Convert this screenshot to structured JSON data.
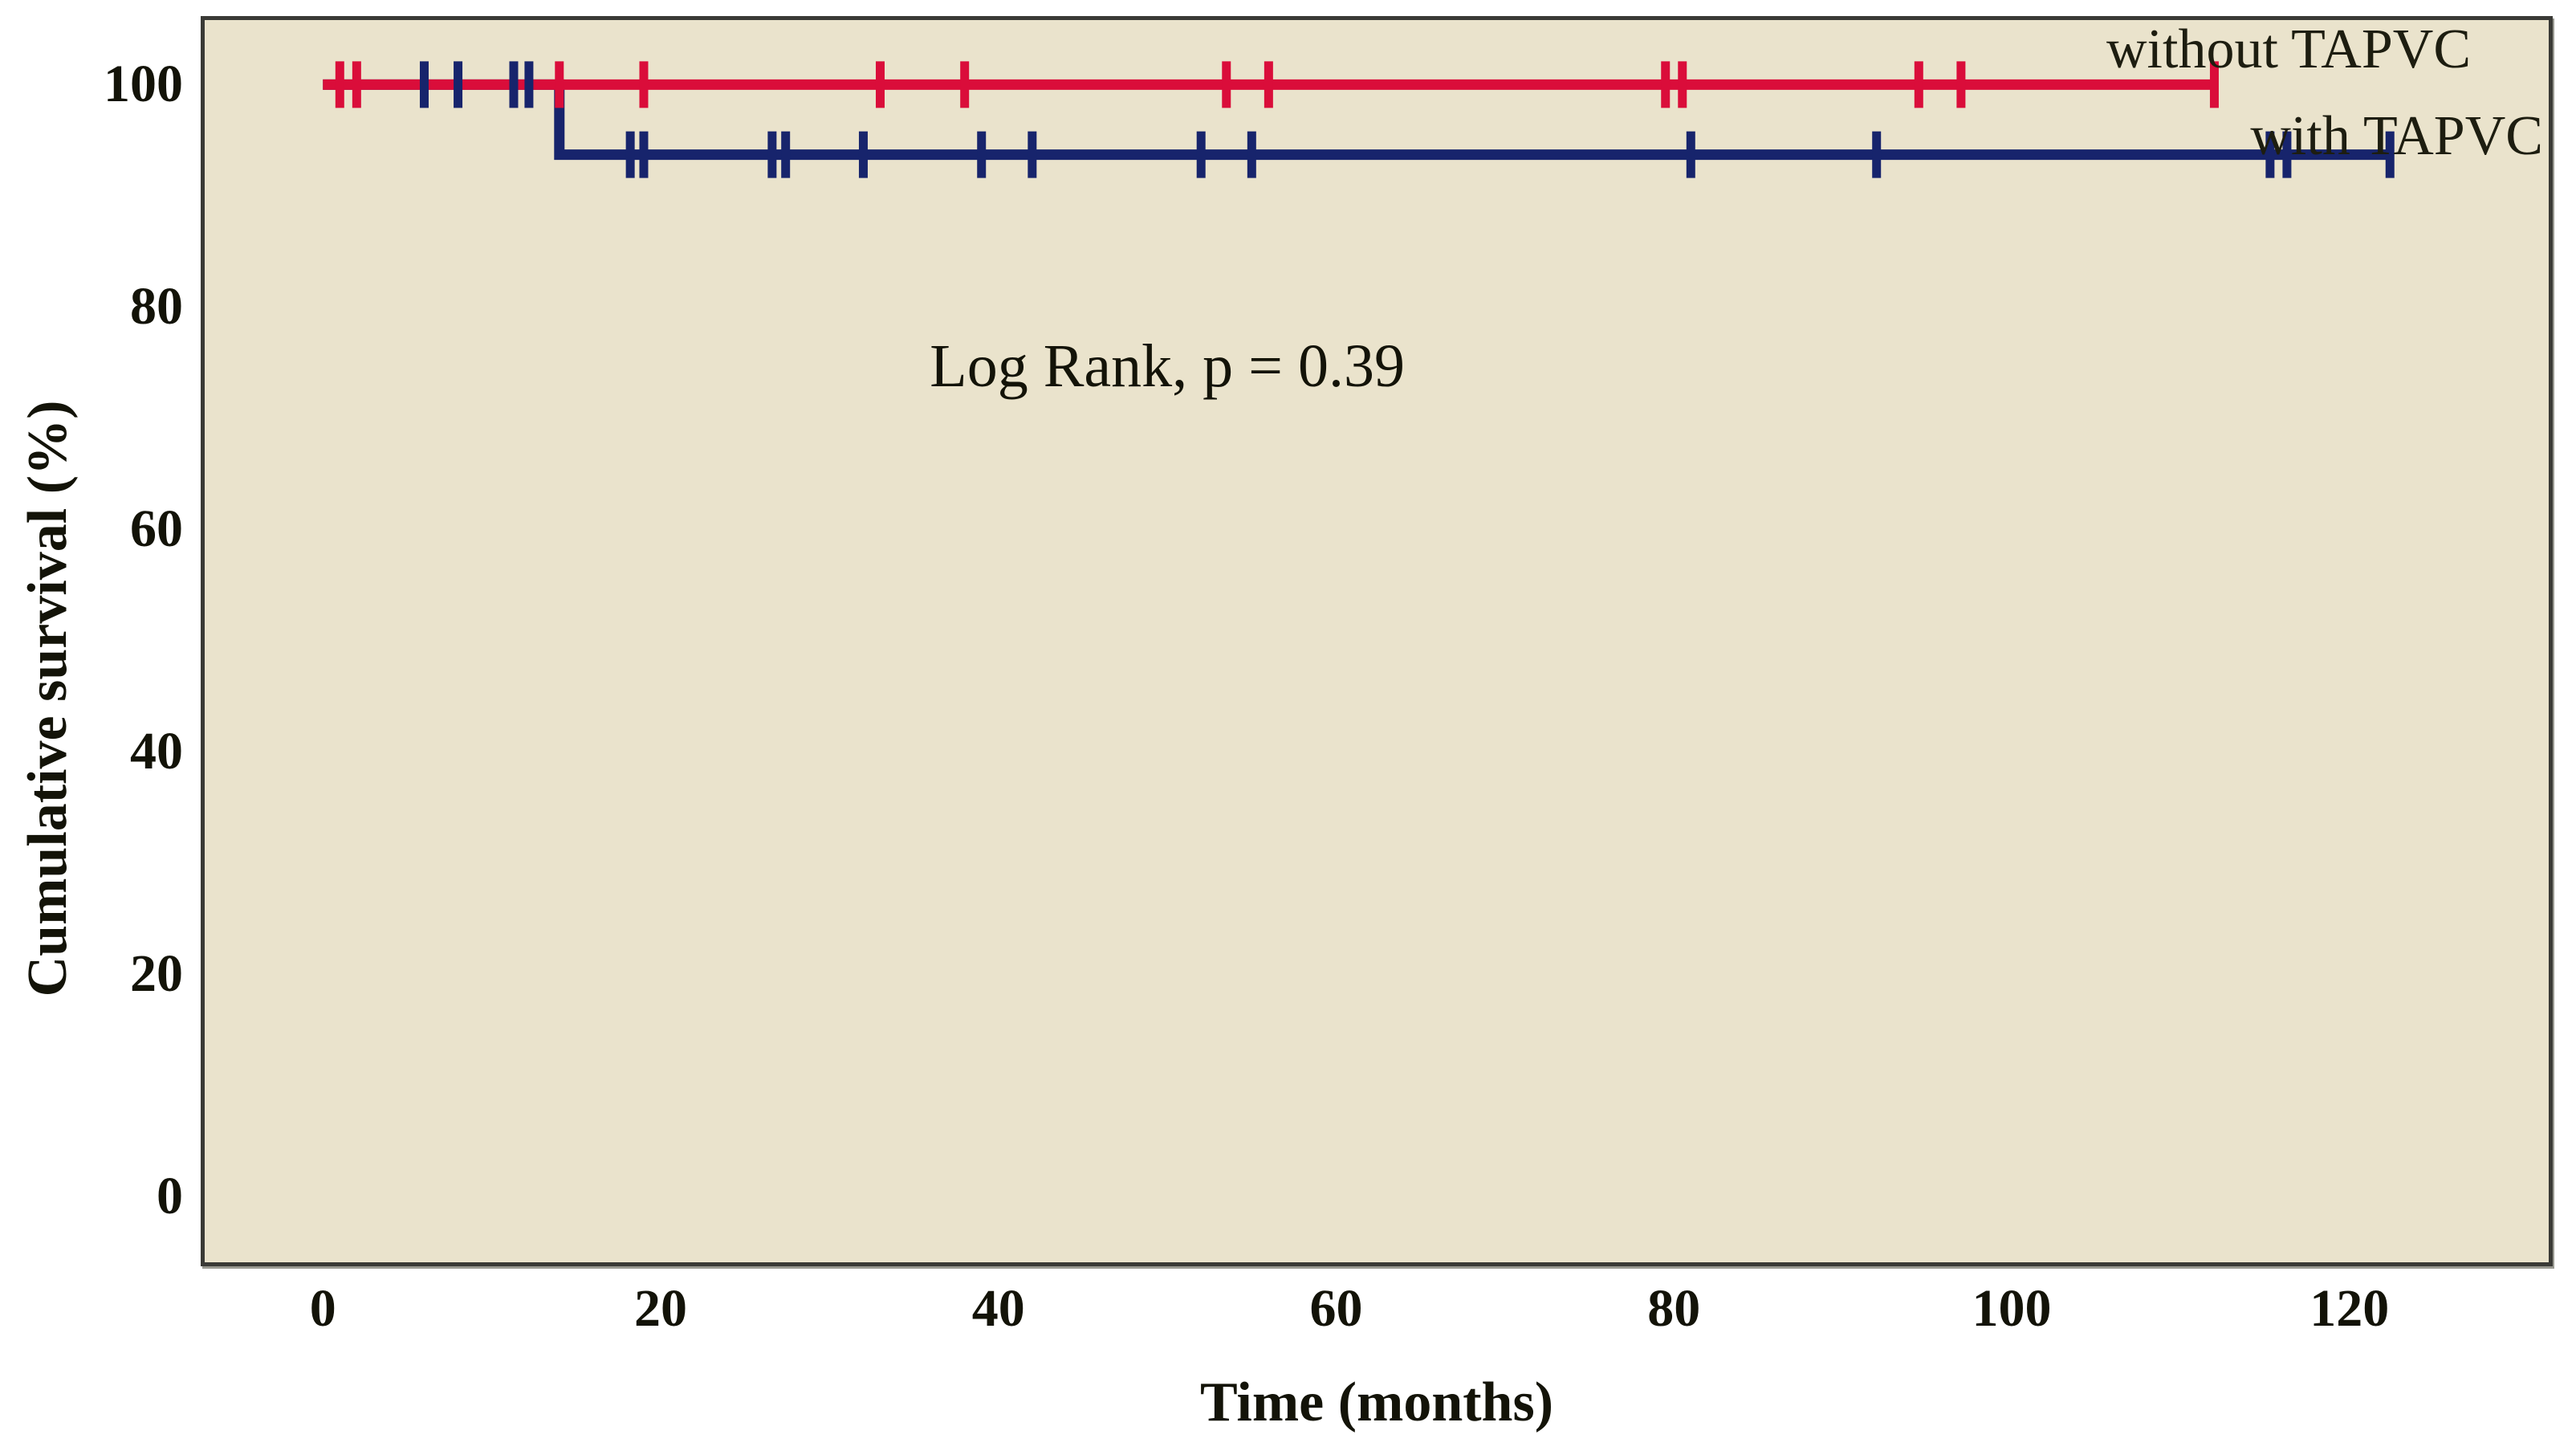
{
  "figure": {
    "background": "#ffffff",
    "plot_background": "#eae3cc",
    "frame_color": "#3a3a36",
    "text_color": "#131308"
  },
  "chart_data": {
    "type": "line",
    "chart_kind": "kaplan_meier_step",
    "title": "",
    "xlabel": "Time (months)",
    "ylabel": "Cumulative survival (%)",
    "xlim": [
      -7,
      131.8
    ],
    "ylim": [
      -5.9,
      105.8
    ],
    "x_ticks": [
      0,
      20,
      40,
      60,
      80,
      100,
      120
    ],
    "y_ticks": [
      100,
      80,
      60,
      40,
      20,
      0
    ],
    "grid": false,
    "legend_position": "inline-annotations-top-right",
    "annotation": {
      "text": "Log Rank, p = 0.39",
      "x": 50,
      "y": 74.7
    },
    "series": [
      {
        "name": "without TAPVC",
        "color": "#da0d3a",
        "points": [
          [
            0,
            100
          ],
          [
            112,
            100
          ]
        ],
        "censors": [
          [
            1,
            100
          ],
          [
            2,
            100
          ],
          [
            14,
            100
          ],
          [
            19,
            100
          ],
          [
            33,
            100
          ],
          [
            38,
            100
          ],
          [
            53.5,
            100
          ],
          [
            56,
            100
          ],
          [
            79.5,
            100
          ],
          [
            80.5,
            100
          ],
          [
            94.5,
            100
          ],
          [
            97,
            100
          ],
          [
            112,
            100
          ]
        ],
        "label_pos": {
          "x": 116.4,
          "y": 103.1
        }
      },
      {
        "name": "with TAPVC",
        "color": "#17246c",
        "points": [
          [
            0,
            100
          ],
          [
            14,
            100
          ],
          [
            14,
            93.7
          ],
          [
            122.4,
            93.7
          ]
        ],
        "censors": [
          [
            6,
            100
          ],
          [
            8,
            100
          ],
          [
            11.3,
            100
          ],
          [
            12.2,
            100
          ],
          [
            18.2,
            93.7
          ],
          [
            19,
            93.7
          ],
          [
            26.6,
            93.7
          ],
          [
            27.4,
            93.7
          ],
          [
            32,
            93.7
          ],
          [
            39,
            93.7
          ],
          [
            42,
            93.7
          ],
          [
            52,
            93.7
          ],
          [
            55,
            93.7
          ],
          [
            81,
            93.7
          ],
          [
            92,
            93.7
          ],
          [
            115.3,
            93.7
          ],
          [
            116.3,
            93.7
          ],
          [
            122.4,
            93.7
          ]
        ],
        "label_pos": {
          "x": 122.8,
          "y": 95.3
        }
      }
    ]
  }
}
